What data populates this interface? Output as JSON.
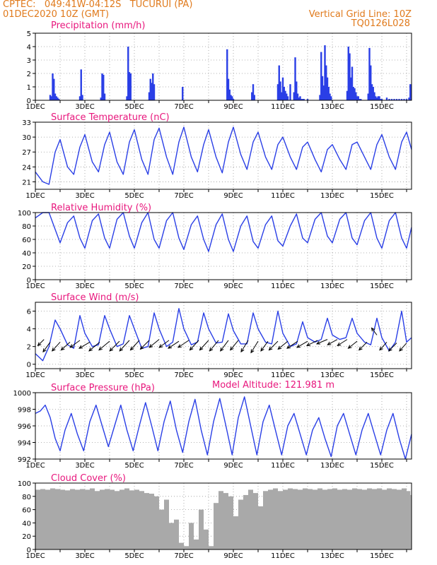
{
  "header": {
    "line1": "CPTEC:   049:41W-04:12S   TUCURUI (PA)",
    "line2": "01DEC2020 10Z (GMT)",
    "grid_note": "Vertical Grid Line: 10Z",
    "code": "TQ0126L028"
  },
  "colors": {
    "header": "#e07a1c",
    "title": "#e8177d",
    "line": "#2a3fe6",
    "cloud": "#a9a9a9",
    "grid": "#9a9a9a"
  },
  "chart_data": [
    {
      "type": "bar",
      "name": "precip",
      "title": "Precipitation (mm/h)",
      "ylim": [
        0,
        5
      ],
      "yticks": [
        0,
        1,
        2,
        3,
        4,
        5
      ],
      "x_days": [
        1,
        16.2
      ],
      "xticks": [
        "1DEC",
        "3DEC",
        "5DEC",
        "7DEC",
        "9DEC",
        "11DEC",
        "13DEC",
        "15DEC"
      ],
      "x": [
        1.6,
        1.65,
        1.7,
        1.75,
        1.8,
        1.85,
        1.9,
        1.95,
        2.8,
        2.85,
        2.9,
        3.65,
        3.7,
        3.75,
        3.8,
        4.7,
        4.75,
        4.8,
        4.85,
        5.6,
        5.65,
        5.7,
        5.75,
        5.8,
        6.95,
        8.75,
        8.8,
        8.85,
        8.9,
        8.95,
        9.0,
        9.75,
        9.8,
        9.85,
        10.8,
        10.85,
        10.9,
        10.95,
        11.0,
        11.05,
        11.1,
        11.15,
        11.2,
        11.3,
        11.45,
        11.5,
        11.55,
        11.6,
        11.65,
        11.7,
        11.75,
        11.8,
        11.85,
        12.0,
        12.5,
        12.55,
        12.6,
        12.65,
        12.7,
        12.75,
        12.8,
        12.85,
        12.9,
        12.95,
        13.6,
        13.65,
        13.7,
        13.75,
        13.8,
        13.85,
        13.9,
        13.95,
        14.0,
        14.05,
        14.1,
        14.15,
        14.45,
        14.5,
        14.55,
        14.6,
        14.65,
        14.7,
        14.75,
        14.8,
        14.85,
        14.9,
        14.95,
        15.0,
        15.2,
        15.3,
        15.4,
        15.5,
        15.6,
        15.7,
        15.8,
        15.9,
        16.0,
        16.1,
        16.15
      ],
      "values": [
        0.4,
        0.3,
        2.0,
        1.6,
        0.5,
        0.3,
        0.2,
        0.1,
        0.3,
        2.3,
        0.4,
        0.2,
        2.0,
        1.9,
        0.5,
        0.3,
        4.0,
        2.1,
        2.0,
        0.6,
        1.6,
        1.3,
        2.0,
        1.2,
        1.0,
        3.8,
        1.6,
        0.8,
        0.4,
        0.3,
        0.1,
        0.6,
        1.2,
        0.4,
        1.2,
        2.6,
        1.4,
        0.6,
        1.7,
        1.0,
        0.7,
        0.5,
        0.3,
        1.2,
        0.6,
        3.2,
        1.4,
        0.5,
        0.2,
        0.3,
        0.1,
        0.1,
        0.1,
        0.1,
        0.4,
        3.6,
        1.8,
        1.1,
        4.1,
        2.6,
        1.7,
        1.0,
        0.5,
        0.3,
        0.7,
        4.0,
        3.5,
        1.7,
        2.5,
        1.0,
        0.9,
        0.6,
        0.3,
        0.3,
        0.1,
        0.1,
        0.5,
        3.9,
        2.6,
        1.2,
        1.0,
        0.6,
        0.3,
        0.2,
        0.3,
        0.3,
        0.1,
        0.1,
        0.2,
        0.1,
        0.1,
        0.1,
        0.1,
        0.1,
        0.1,
        0.1,
        0.1,
        0.2,
        1.2
      ]
    },
    {
      "type": "line",
      "name": "temp",
      "title": "Surface Temperature (nC)",
      "ylim": [
        19.5,
        33
      ],
      "yticks": [
        21,
        24,
        27,
        30,
        33
      ],
      "x_days": [
        1,
        16.2
      ],
      "xticks": [
        "1DEC",
        "3DEC",
        "5DEC",
        "7DEC",
        "9DEC",
        "11DEC",
        "13DEC",
        "15DEC"
      ],
      "x": [
        1.0,
        1.3,
        1.55,
        1.8,
        2.0,
        2.3,
        2.55,
        2.8,
        3.0,
        3.3,
        3.55,
        3.8,
        4.0,
        4.3,
        4.55,
        4.8,
        5.0,
        5.3,
        5.55,
        5.8,
        6.0,
        6.3,
        6.55,
        6.8,
        7.0,
        7.3,
        7.55,
        7.8,
        8.0,
        8.3,
        8.55,
        8.8,
        9.0,
        9.3,
        9.55,
        9.8,
        10.0,
        10.3,
        10.55,
        10.8,
        11.0,
        11.3,
        11.55,
        11.8,
        12.0,
        12.3,
        12.55,
        12.8,
        13.0,
        13.3,
        13.55,
        13.8,
        14.0,
        14.3,
        14.55,
        14.8,
        15.0,
        15.3,
        15.55,
        15.8,
        16.0,
        16.2
      ],
      "values": [
        23.0,
        21.0,
        20.5,
        27.0,
        29.5,
        24.0,
        22.5,
        28.0,
        30.5,
        25.0,
        23.0,
        28.5,
        31.0,
        25.0,
        22.5,
        29.0,
        31.5,
        25.5,
        22.5,
        29.5,
        31.8,
        26.0,
        22.5,
        29.0,
        32.0,
        26.0,
        23.0,
        28.5,
        31.5,
        26.0,
        22.8,
        29.0,
        32.0,
        26.5,
        23.5,
        29.0,
        31.0,
        26.0,
        23.5,
        28.5,
        30.0,
        26.0,
        23.5,
        28.0,
        29.0,
        25.5,
        23.0,
        27.5,
        28.5,
        25.5,
        23.5,
        28.5,
        29.0,
        26.0,
        23.5,
        28.5,
        30.5,
        26.0,
        23.5,
        29.0,
        31.0,
        27.5
      ]
    },
    {
      "type": "line",
      "name": "rh",
      "title": "Relative Humidity (%)",
      "ylim": [
        0,
        100
      ],
      "yticks": [
        0,
        20,
        40,
        60,
        80,
        100
      ],
      "x_days": [
        1,
        16.2
      ],
      "xticks": [
        "1DEC",
        "3DEC",
        "5DEC",
        "7DEC",
        "9DEC",
        "11DEC",
        "13DEC",
        "15DEC"
      ],
      "x": [
        1.0,
        1.3,
        1.55,
        1.8,
        2.0,
        2.3,
        2.55,
        2.8,
        3.0,
        3.3,
        3.55,
        3.8,
        4.0,
        4.3,
        4.55,
        4.8,
        5.0,
        5.3,
        5.55,
        5.8,
        6.0,
        6.3,
        6.55,
        6.8,
        7.0,
        7.3,
        7.55,
        7.8,
        8.0,
        8.3,
        8.55,
        8.8,
        9.0,
        9.3,
        9.55,
        9.8,
        10.0,
        10.3,
        10.55,
        10.8,
        11.0,
        11.3,
        11.55,
        11.8,
        12.0,
        12.3,
        12.55,
        12.8,
        13.0,
        13.3,
        13.55,
        13.8,
        14.0,
        14.3,
        14.55,
        14.8,
        15.0,
        15.3,
        15.55,
        15.8,
        16.0,
        16.2
      ],
      "values": [
        92,
        100,
        100,
        75,
        55,
        85,
        95,
        62,
        47,
        88,
        98,
        62,
        47,
        90,
        100,
        65,
        47,
        85,
        100,
        60,
        47,
        88,
        100,
        62,
        45,
        82,
        95,
        60,
        42,
        82,
        98,
        60,
        42,
        80,
        95,
        57,
        47,
        82,
        95,
        58,
        50,
        80,
        98,
        62,
        55,
        90,
        100,
        65,
        55,
        90,
        100,
        62,
        52,
        88,
        100,
        62,
        47,
        88,
        100,
        62,
        47,
        78
      ]
    },
    {
      "type": "line",
      "name": "wind",
      "title": "Surface Wind (m/s)",
      "ylim": [
        -0.5,
        7
      ],
      "yticks": [
        0,
        2,
        4,
        6
      ],
      "x_days": [
        1,
        16.2
      ],
      "xticks": [
        "1DEC",
        "3DEC",
        "5DEC",
        "7DEC",
        "9DEC",
        "11DEC",
        "13DEC",
        "15DEC"
      ],
      "x": [
        1.0,
        1.3,
        1.55,
        1.8,
        2.0,
        2.3,
        2.55,
        2.8,
        3.0,
        3.3,
        3.55,
        3.8,
        4.0,
        4.3,
        4.55,
        4.8,
        5.0,
        5.3,
        5.55,
        5.8,
        6.0,
        6.3,
        6.55,
        6.8,
        7.0,
        7.3,
        7.55,
        7.8,
        8.0,
        8.3,
        8.55,
        8.8,
        9.0,
        9.3,
        9.55,
        9.8,
        10.0,
        10.3,
        10.55,
        10.8,
        11.0,
        11.3,
        11.55,
        11.8,
        12.0,
        12.3,
        12.55,
        12.8,
        13.0,
        13.3,
        13.55,
        13.8,
        14.0,
        14.3,
        14.55,
        14.8,
        15.0,
        15.3,
        15.55,
        15.8,
        16.0,
        16.2
      ],
      "values": [
        1.2,
        0.4,
        2.0,
        5.0,
        4.0,
        2.2,
        1.8,
        5.5,
        3.5,
        2.0,
        2.2,
        5.5,
        4.0,
        2.0,
        2.3,
        5.5,
        4.0,
        1.8,
        2.0,
        5.8,
        4.0,
        2.0,
        2.5,
        6.3,
        4.0,
        2.2,
        2.5,
        5.8,
        4.0,
        2.4,
        2.5,
        5.7,
        3.8,
        2.3,
        2.3,
        5.8,
        4.0,
        2.5,
        2.3,
        6.0,
        3.5,
        2.0,
        2.3,
        4.8,
        3.0,
        2.5,
        2.8,
        5.2,
        3.3,
        2.8,
        3.0,
        5.2,
        3.5,
        2.5,
        2.2,
        5.2,
        3.0,
        1.5,
        2.5,
        6.0,
        2.5,
        3.0
      ],
      "vectors": [
        [
          1.35,
          2.8,
          -0.35,
          -0.35
        ],
        [
          1.6,
          2.5,
          -0.4,
          -0.55
        ],
        [
          2.0,
          2.5,
          -0.45,
          -0.5
        ],
        [
          2.4,
          2.5,
          -0.5,
          -0.45
        ],
        [
          2.8,
          2.7,
          -0.55,
          -0.4
        ],
        [
          3.2,
          2.5,
          -0.6,
          -0.35
        ],
        [
          3.6,
          2.5,
          -0.6,
          -0.5
        ],
        [
          4.0,
          2.6,
          -0.6,
          -0.5
        ],
        [
          4.4,
          2.6,
          -0.55,
          -0.55
        ],
        [
          4.8,
          2.7,
          -0.55,
          -0.6
        ],
        [
          5.2,
          2.7,
          -0.5,
          -0.55
        ],
        [
          5.6,
          2.7,
          -0.5,
          -0.5
        ],
        [
          6.0,
          2.8,
          -0.55,
          -0.45
        ],
        [
          6.4,
          2.7,
          -0.55,
          -0.4
        ],
        [
          6.8,
          2.6,
          -0.6,
          -0.4
        ],
        [
          7.2,
          2.7,
          -0.6,
          -0.4
        ],
        [
          7.6,
          2.7,
          -0.5,
          -0.55
        ],
        [
          8.0,
          2.7,
          -0.5,
          -0.55
        ],
        [
          8.4,
          2.7,
          -0.5,
          -0.6
        ],
        [
          8.8,
          2.7,
          -0.45,
          -0.6
        ],
        [
          9.2,
          2.7,
          -0.45,
          -0.55
        ],
        [
          9.6,
          2.7,
          -0.4,
          -0.65
        ],
        [
          10.0,
          2.6,
          -0.4,
          -0.65
        ],
        [
          10.4,
          2.6,
          -0.4,
          -0.55
        ],
        [
          10.8,
          2.6,
          -0.5,
          -0.5
        ],
        [
          11.2,
          2.6,
          -0.55,
          -0.45
        ],
        [
          11.6,
          2.6,
          -0.6,
          -0.4
        ],
        [
          12.0,
          2.6,
          -0.6,
          -0.35
        ],
        [
          12.4,
          2.7,
          -0.6,
          -0.3
        ],
        [
          12.8,
          2.8,
          -0.6,
          -0.25
        ],
        [
          13.2,
          2.8,
          -0.55,
          -0.3
        ],
        [
          13.6,
          2.8,
          -0.55,
          -0.35
        ],
        [
          14.0,
          2.6,
          -0.5,
          -0.4
        ],
        [
          14.4,
          2.5,
          -0.45,
          -0.45
        ],
        [
          14.8,
          3.3,
          -0.3,
          0.4
        ],
        [
          15.2,
          2.5,
          -0.4,
          -0.45
        ],
        [
          15.6,
          2.4,
          -0.45,
          -0.45
        ],
        [
          16.0,
          2.4,
          -0.4,
          -0.45
        ]
      ]
    },
    {
      "type": "line",
      "name": "pres",
      "title": "Surface Pressure (hPa)",
      "ylim": [
        992,
        1000
      ],
      "yticks": [
        992,
        994,
        996,
        998,
        1000
      ],
      "x_days": [
        1,
        16.2
      ],
      "xticks": [
        "1DEC",
        "3DEC",
        "5DEC",
        "7DEC",
        "9DEC",
        "11DEC",
        "13DEC",
        "15DEC"
      ],
      "x": [
        1.0,
        1.2,
        1.4,
        1.6,
        1.8,
        2.0,
        2.2,
        2.45,
        2.7,
        2.95,
        3.2,
        3.45,
        3.7,
        3.95,
        4.2,
        4.45,
        4.7,
        4.95,
        5.2,
        5.45,
        5.7,
        5.95,
        6.2,
        6.45,
        6.7,
        6.95,
        7.2,
        7.45,
        7.7,
        7.95,
        8.2,
        8.45,
        8.7,
        8.95,
        9.2,
        9.45,
        9.7,
        9.95,
        10.2,
        10.45,
        10.7,
        10.95,
        11.2,
        11.45,
        11.7,
        11.95,
        12.2,
        12.45,
        12.7,
        12.95,
        13.2,
        13.45,
        13.7,
        13.95,
        14.2,
        14.45,
        14.7,
        14.95,
        15.2,
        15.45,
        15.7,
        15.95,
        16.2
      ],
      "values": [
        997.5,
        997.8,
        998.5,
        997.0,
        994.5,
        993.0,
        995.5,
        997.5,
        995.0,
        993.0,
        996.5,
        998.5,
        996.0,
        993.5,
        996.0,
        998.5,
        995.5,
        993.0,
        996.0,
        998.8,
        996.0,
        993.0,
        996.5,
        999.0,
        995.5,
        992.8,
        996.5,
        999.2,
        995.5,
        992.5,
        996.5,
        999.3,
        996.0,
        992.5,
        997.0,
        999.5,
        996.0,
        992.5,
        996.5,
        998.5,
        995.5,
        992.5,
        996.0,
        997.5,
        995.0,
        992.5,
        995.5,
        997.0,
        994.5,
        992.3,
        996.0,
        997.5,
        995.0,
        992.5,
        995.5,
        997.5,
        995.0,
        992.5,
        995.5,
        997.5,
        994.5,
        992.0,
        995.0
      ]
    },
    {
      "type": "bar",
      "name": "cloud",
      "title": "Cloud Cover (%)",
      "ylim": [
        0,
        100
      ],
      "yticks": [
        0,
        20,
        40,
        60,
        80,
        100
      ],
      "x_days": [
        1,
        16.2
      ],
      "xticks": [
        "1DEC",
        "3DEC",
        "5DEC",
        "7DEC",
        "9DEC",
        "11DEC",
        "13DEC",
        "15DEC"
      ],
      "x": [
        1.0,
        1.2,
        1.4,
        1.6,
        1.8,
        2.0,
        2.2,
        2.4,
        2.6,
        2.8,
        3.0,
        3.2,
        3.4,
        3.6,
        3.8,
        4.0,
        4.2,
        4.4,
        4.6,
        4.8,
        5.0,
        5.2,
        5.4,
        5.6,
        5.8,
        6.0,
        6.2,
        6.4,
        6.6,
        6.8,
        7.0,
        7.2,
        7.4,
        7.6,
        7.8,
        8.0,
        8.2,
        8.4,
        8.6,
        8.8,
        9.0,
        9.2,
        9.4,
        9.6,
        9.8,
        10.0,
        10.2,
        10.4,
        10.6,
        10.8,
        11.0,
        11.2,
        11.4,
        11.6,
        11.8,
        12.0,
        12.2,
        12.4,
        12.6,
        12.8,
        13.0,
        13.2,
        13.4,
        13.6,
        13.8,
        14.0,
        14.2,
        14.4,
        14.6,
        14.8,
        15.0,
        15.2,
        15.4,
        15.6,
        15.8,
        16.0,
        16.15
      ],
      "values": [
        90,
        91,
        90,
        92,
        91,
        90,
        89,
        91,
        90,
        91,
        90,
        92,
        88,
        90,
        91,
        90,
        88,
        90,
        92,
        89,
        90,
        88,
        85,
        84,
        80,
        60,
        75,
        40,
        45,
        10,
        5,
        40,
        15,
        60,
        30,
        5,
        70,
        88,
        85,
        80,
        50,
        75,
        82,
        90,
        85,
        65,
        88,
        90,
        92,
        88,
        90,
        92,
        91,
        90,
        92,
        91,
        90,
        92,
        90,
        91,
        92,
        90,
        91,
        90,
        92,
        91,
        90,
        92,
        91,
        92,
        90,
        92,
        91,
        90,
        92,
        88,
        82
      ]
    }
  ]
}
